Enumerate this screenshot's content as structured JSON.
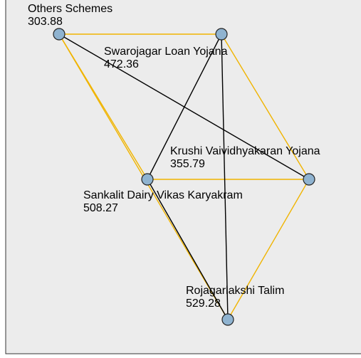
{
  "nodes": [
    {
      "label": "Others Schemes",
      "value": 303.88
    },
    {
      "label": "Swarojagar Loan Yojana",
      "value": 472.36
    },
    {
      "label": "Krushi Vaividhyakaran Yojana",
      "value": 355.79
    },
    {
      "label": "Sankalit Dairy Vikas Karyakram",
      "value": 508.27
    },
    {
      "label": "Rojagarlakshi Talim",
      "value": 529.28
    }
  ]
}
